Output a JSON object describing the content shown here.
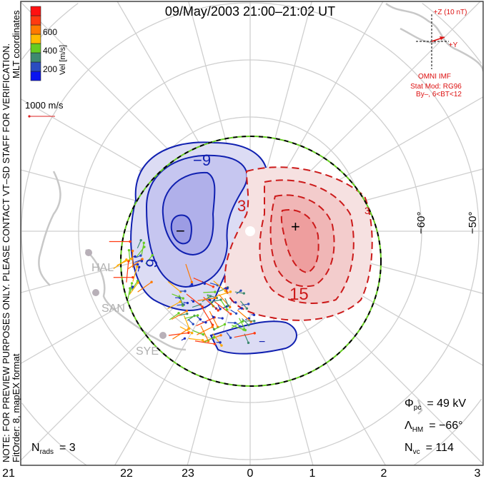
{
  "title": "09/May/2003 21:00–21:02 UT",
  "side_note": "NOTE: FOR PREVIEW PURPOSES ONLY. PLEASE CONTACT VT–SD STAFF FOR VERIFICATION.",
  "coords_label": "MLT coordinates",
  "fit_label": "FitOrder: 8, mapEX format",
  "colorbar": {
    "label": "Vel [m/s]",
    "ticks": [
      "200",
      "400",
      "600"
    ],
    "colors": [
      "#0a14f0",
      "#2a4cc0",
      "#3e8a70",
      "#66cc22",
      "#ffbb00",
      "#ff7a00",
      "#ff3a10",
      "#ff1010"
    ]
  },
  "reference_vector": {
    "label": "1000 m/s",
    "color": "#dd2020"
  },
  "imf": {
    "z_label": "+Z (10 nT)",
    "y_label": "+Y",
    "source": "OMNI IMF",
    "model": "Stat Mod: RG96",
    "condition": "By–, 6<BT<12",
    "color": "#dd1010"
  },
  "latitude_labels": [
    "−60°",
    "−50°"
  ],
  "mlt_labels": [
    "21",
    "22",
    "23",
    "0",
    "1",
    "2",
    "3"
  ],
  "contour_labels": [
    "−9",
    "9",
    "−",
    "3",
    "+",
    "15",
    "3",
    "−"
  ],
  "radars": [
    "HAL",
    "SAN",
    "SYE"
  ],
  "stats": {
    "phi_pc": {
      "symbol": "Φ",
      "sub": "pc",
      "value": "=  49  kV"
    },
    "lambda_hm": {
      "symbol": "Λ",
      "sub": "HM",
      "value": "=  −66°"
    },
    "n_vc": {
      "symbol": "N",
      "sub": "vc",
      "value": "=  114"
    },
    "n_rads": {
      "symbol": "N",
      "sub": "rads",
      "value": "=  3"
    }
  }
}
